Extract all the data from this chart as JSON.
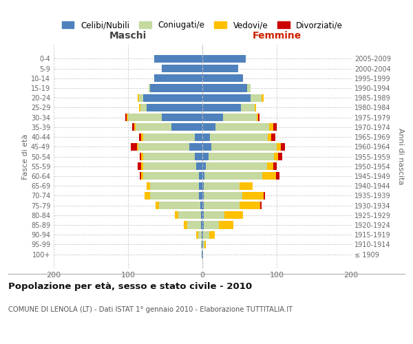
{
  "age_groups": [
    "100+",
    "95-99",
    "90-94",
    "85-89",
    "80-84",
    "75-79",
    "70-74",
    "65-69",
    "60-64",
    "55-59",
    "50-54",
    "45-49",
    "40-44",
    "35-39",
    "30-34",
    "25-29",
    "20-24",
    "15-19",
    "10-14",
    "5-9",
    "0-4"
  ],
  "birth_years": [
    "≤ 1909",
    "1910-1914",
    "1915-1919",
    "1920-1924",
    "1925-1929",
    "1930-1934",
    "1935-1939",
    "1940-1944",
    "1945-1949",
    "1950-1954",
    "1955-1959",
    "1960-1964",
    "1965-1969",
    "1970-1974",
    "1975-1979",
    "1980-1984",
    "1985-1989",
    "1990-1994",
    "1995-1999",
    "2000-2004",
    "2005-2009"
  ],
  "male_celibi": [
    1,
    1,
    1,
    2,
    2,
    3,
    5,
    5,
    5,
    8,
    10,
    18,
    10,
    42,
    55,
    75,
    80,
    70,
    65,
    55,
    65
  ],
  "male_coniugati": [
    0,
    1,
    5,
    18,
    30,
    55,
    65,
    65,
    75,
    72,
    70,
    68,
    70,
    48,
    45,
    8,
    5,
    2,
    0,
    0,
    0
  ],
  "male_vedovi": [
    0,
    0,
    2,
    5,
    5,
    5,
    8,
    5,
    2,
    2,
    2,
    2,
    2,
    2,
    2,
    2,
    2,
    0,
    0,
    0,
    0
  ],
  "male_divorziati": [
    0,
    0,
    0,
    0,
    0,
    0,
    0,
    0,
    2,
    5,
    2,
    8,
    3,
    2,
    2,
    0,
    0,
    0,
    0,
    0,
    0
  ],
  "female_nubili": [
    1,
    1,
    1,
    2,
    2,
    2,
    2,
    2,
    3,
    5,
    8,
    12,
    10,
    18,
    28,
    52,
    65,
    60,
    55,
    48,
    58
  ],
  "female_coniugate": [
    0,
    2,
    8,
    20,
    28,
    48,
    52,
    48,
    78,
    82,
    88,
    88,
    78,
    72,
    45,
    18,
    15,
    5,
    0,
    0,
    0
  ],
  "female_vedove": [
    0,
    2,
    8,
    20,
    25,
    28,
    28,
    18,
    18,
    8,
    6,
    6,
    5,
    5,
    2,
    2,
    2,
    0,
    0,
    0,
    0
  ],
  "female_divorziate": [
    0,
    0,
    0,
    0,
    0,
    2,
    2,
    0,
    5,
    5,
    5,
    5,
    5,
    5,
    2,
    0,
    0,
    0,
    0,
    0,
    0
  ],
  "color_celibi": "#4f81bd",
  "color_coniugati": "#c5d9a0",
  "color_vedovi": "#ffc000",
  "color_divorziati": "#cc0000",
  "title": "Popolazione per età, sesso e stato civile - 2010",
  "subtitle": "COMUNE DI LENOLA (LT) - Dati ISTAT 1° gennaio 2010 - Elaborazione TUTTITALIA.IT",
  "label_maschi": "Maschi",
  "label_femmine": "Femmine",
  "ylabel_left": "Fasce di età",
  "ylabel_right": "Anni di nascita",
  "xlim": 200,
  "legend_labels": [
    "Celibi/Nubili",
    "Coniugati/e",
    "Vedovi/e",
    "Divorziati/e"
  ]
}
